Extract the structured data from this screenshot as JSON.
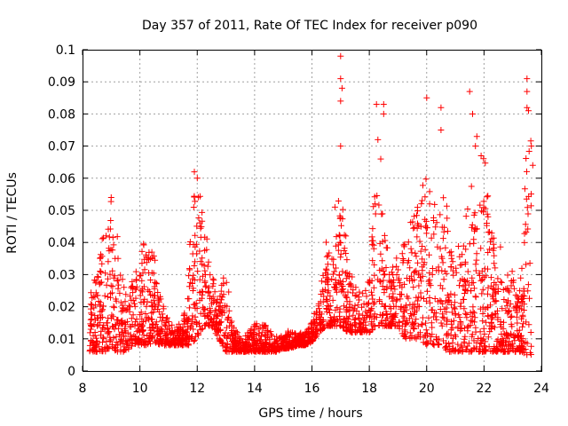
{
  "chart_data": {
    "type": "scatter",
    "title": "Day 357 of 2011, Rate Of TEC Index for receiver p090",
    "xlabel": "GPS time / hours",
    "ylabel": "ROTI / TECUs",
    "xlim": [
      8,
      24
    ],
    "ylim": [
      0,
      0.1
    ],
    "xticks": [
      "8",
      "10",
      "12",
      "14",
      "16",
      "18",
      "20",
      "22",
      "24"
    ],
    "yticks": [
      "0",
      "0.01",
      "0.02",
      "0.03",
      "0.04",
      "0.05",
      "0.06",
      "0.07",
      "0.08",
      "0.09",
      "0.1"
    ],
    "grid": true,
    "marker": "+",
    "marker_color": "#ff0000",
    "envelope": [
      [
        8.25,
        0.006,
        0.022
      ],
      [
        8.5,
        0.006,
        0.032
      ],
      [
        8.75,
        0.006,
        0.046
      ],
      [
        9.0,
        0.006,
        0.053
      ],
      [
        9.25,
        0.006,
        0.036
      ],
      [
        9.5,
        0.006,
        0.022
      ],
      [
        9.75,
        0.008,
        0.03
      ],
      [
        10.0,
        0.008,
        0.034
      ],
      [
        10.25,
        0.008,
        0.04
      ],
      [
        10.5,
        0.009,
        0.036
      ],
      [
        10.75,
        0.008,
        0.022
      ],
      [
        11.0,
        0.008,
        0.016
      ],
      [
        11.25,
        0.008,
        0.014
      ],
      [
        11.5,
        0.008,
        0.014
      ],
      [
        11.75,
        0.008,
        0.04
      ],
      [
        11.95,
        0.01,
        0.061
      ],
      [
        12.25,
        0.014,
        0.044
      ],
      [
        12.5,
        0.014,
        0.032
      ],
      [
        12.75,
        0.01,
        0.022
      ],
      [
        13.0,
        0.006,
        0.032
      ],
      [
        13.25,
        0.006,
        0.014
      ],
      [
        13.5,
        0.006,
        0.01
      ],
      [
        13.75,
        0.006,
        0.012
      ],
      [
        14.0,
        0.006,
        0.014
      ],
      [
        14.25,
        0.006,
        0.015
      ],
      [
        14.5,
        0.006,
        0.013
      ],
      [
        14.75,
        0.006,
        0.01
      ],
      [
        15.0,
        0.007,
        0.012
      ],
      [
        15.25,
        0.007,
        0.012
      ],
      [
        15.5,
        0.008,
        0.012
      ],
      [
        15.75,
        0.008,
        0.012
      ],
      [
        16.0,
        0.009,
        0.016
      ],
      [
        16.25,
        0.012,
        0.022
      ],
      [
        16.5,
        0.014,
        0.04
      ],
      [
        16.75,
        0.014,
        0.04
      ],
      [
        17.0,
        0.014,
        0.058
      ],
      [
        17.25,
        0.012,
        0.034
      ],
      [
        17.5,
        0.012,
        0.03
      ],
      [
        17.75,
        0.012,
        0.024
      ],
      [
        18.0,
        0.012,
        0.03
      ],
      [
        18.25,
        0.014,
        0.06
      ],
      [
        18.5,
        0.014,
        0.048
      ],
      [
        18.75,
        0.014,
        0.03
      ],
      [
        19.0,
        0.014,
        0.036
      ],
      [
        19.25,
        0.01,
        0.044
      ],
      [
        19.5,
        0.01,
        0.052
      ],
      [
        19.75,
        0.01,
        0.058
      ],
      [
        20.0,
        0.008,
        0.064
      ],
      [
        20.25,
        0.008,
        0.055
      ],
      [
        20.5,
        0.008,
        0.06
      ],
      [
        20.75,
        0.006,
        0.045
      ],
      [
        21.0,
        0.006,
        0.035
      ],
      [
        21.25,
        0.006,
        0.04
      ],
      [
        21.5,
        0.006,
        0.055
      ],
      [
        21.75,
        0.006,
        0.06
      ],
      [
        22.0,
        0.006,
        0.065
      ],
      [
        22.25,
        0.006,
        0.045
      ],
      [
        22.5,
        0.006,
        0.04
      ],
      [
        22.75,
        0.006,
        0.03
      ],
      [
        23.0,
        0.006,
        0.03
      ],
      [
        23.25,
        0.006,
        0.025
      ],
      [
        23.5,
        0.005,
        0.08
      ],
      [
        23.65,
        0.005,
        0.065
      ]
    ],
    "outliers": [
      [
        17.0,
        0.098
      ],
      [
        17.0,
        0.091
      ],
      [
        17.05,
        0.088
      ],
      [
        17.0,
        0.084
      ],
      [
        17.0,
        0.07
      ],
      [
        18.25,
        0.083
      ],
      [
        18.5,
        0.083
      ],
      [
        18.5,
        0.08
      ],
      [
        18.3,
        0.072
      ],
      [
        18.4,
        0.066
      ],
      [
        20.0,
        0.085
      ],
      [
        20.5,
        0.082
      ],
      [
        20.5,
        0.075
      ],
      [
        21.5,
        0.087
      ],
      [
        21.6,
        0.08
      ],
      [
        21.75,
        0.073
      ],
      [
        21.7,
        0.07
      ],
      [
        21.9,
        0.067
      ],
      [
        23.5,
        0.091
      ],
      [
        23.5,
        0.087
      ],
      [
        23.5,
        0.082
      ],
      [
        23.55,
        0.081
      ],
      [
        23.65,
        0.07
      ],
      [
        23.7,
        0.064
      ],
      [
        11.9,
        0.062
      ],
      [
        12.0,
        0.06
      ],
      [
        9.0,
        0.054
      ],
      [
        16.8,
        0.051
      ]
    ]
  }
}
